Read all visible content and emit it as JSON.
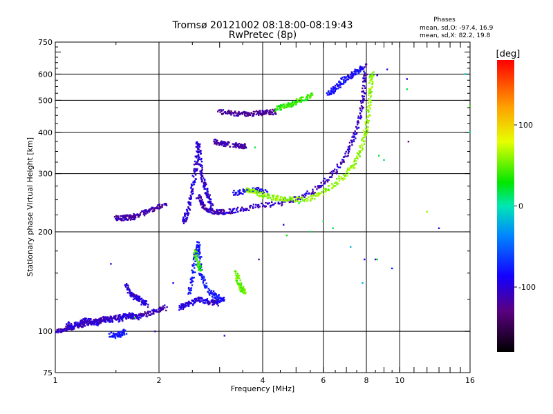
{
  "chart_data": {
    "type": "scatter",
    "title": "Tromsø 20121002 08:18:00-08:19:43",
    "subtitle": "RwPretec (8p)",
    "stats": {
      "heading": "Phases",
      "line1": "mean, sd,O: -97.4, 16.9",
      "line2": "mean, sd,X:  82.2, 19.8"
    },
    "xlabel": "Frequency [MHz]",
    "ylabel": "Stationary phase Virtual Height [km]",
    "x_scale": "log",
    "y_scale": "log",
    "xlim": [
      1,
      16
    ],
    "ylim": [
      75,
      750
    ],
    "x_ticks": [
      1,
      2,
      4,
      6,
      8,
      10,
      16
    ],
    "y_ticks": [
      75,
      100,
      200,
      300,
      400,
      500,
      600,
      750
    ],
    "grid_x": [
      2,
      4,
      6,
      8,
      10
    ],
    "grid_y": [
      100,
      200,
      300,
      400,
      500,
      600
    ],
    "colorbar": {
      "label": "[deg]",
      "range": [
        -180,
        180
      ],
      "ticks": [
        100,
        0,
        -100
      ]
    },
    "traces": [
      {
        "phase": -115,
        "points": [
          [
            1.0,
            100
          ],
          [
            1.05,
            101
          ],
          [
            1.1,
            102
          ],
          [
            1.15,
            104
          ],
          [
            1.2,
            105
          ],
          [
            1.25,
            106
          ],
          [
            1.3,
            107
          ],
          [
            1.35,
            108
          ],
          [
            1.4,
            109
          ],
          [
            1.5,
            110
          ],
          [
            1.6,
            111
          ],
          [
            1.7,
            111
          ],
          [
            1.8,
            112
          ],
          [
            1.9,
            114
          ],
          [
            2.0,
            116
          ],
          [
            2.1,
            118
          ]
        ]
      },
      {
        "phase": -110,
        "points": [
          [
            1.08,
            105
          ],
          [
            1.12,
            103
          ],
          [
            1.18,
            106
          ],
          [
            1.22,
            108
          ],
          [
            1.28,
            107
          ],
          [
            1.32,
            106
          ],
          [
            1.38,
            109
          ],
          [
            1.45,
            108
          ],
          [
            1.55,
            109
          ],
          [
            1.65,
            112
          ],
          [
            1.75,
            110
          ]
        ]
      },
      {
        "phase": -120,
        "points": [
          [
            1.5,
            220
          ],
          [
            1.55,
            220
          ],
          [
            1.6,
            221
          ],
          [
            1.65,
            221
          ],
          [
            1.7,
            222
          ],
          [
            1.8,
            228
          ],
          [
            1.9,
            234
          ],
          [
            2.0,
            238
          ],
          [
            2.1,
            242
          ]
        ]
      },
      {
        "phase": -110,
        "points": [
          [
            2.35,
            215
          ],
          [
            2.4,
            222
          ],
          [
            2.45,
            240
          ],
          [
            2.5,
            268
          ],
          [
            2.55,
            305
          ],
          [
            2.58,
            340
          ],
          [
            2.6,
            370
          ],
          [
            2.62,
            345
          ],
          [
            2.65,
            300
          ],
          [
            2.7,
            280
          ],
          [
            2.75,
            262
          ],
          [
            2.8,
            250
          ],
          [
            2.85,
            240
          ]
        ]
      },
      {
        "phase": -115,
        "points": [
          [
            2.6,
            255
          ],
          [
            2.65,
            245
          ],
          [
            2.7,
            238
          ],
          [
            2.8,
            232
          ],
          [
            2.9,
            230
          ],
          [
            3.0,
            229
          ],
          [
            3.1,
            230
          ],
          [
            3.3,
            231
          ],
          [
            3.6,
            236
          ],
          [
            4.0,
            240
          ],
          [
            4.5,
            244
          ],
          [
            5.0,
            252
          ],
          [
            5.5,
            262
          ],
          [
            6.0,
            280
          ],
          [
            6.5,
            305
          ],
          [
            7.0,
            340
          ],
          [
            7.3,
            380
          ],
          [
            7.6,
            430
          ],
          [
            7.8,
            490
          ],
          [
            7.9,
            560
          ],
          [
            7.95,
            640
          ]
        ]
      },
      {
        "phase": -100,
        "points": [
          [
            3.3,
            262
          ],
          [
            3.5,
            265
          ],
          [
            3.7,
            268
          ],
          [
            3.9,
            268
          ],
          [
            4.1,
            265
          ]
        ]
      },
      {
        "phase": 60,
        "points": [
          [
            3.6,
            268
          ],
          [
            3.8,
            264
          ],
          [
            4.0,
            258
          ],
          [
            4.3,
            254
          ],
          [
            4.6,
            252
          ],
          [
            5.0,
            250
          ],
          [
            5.5,
            252
          ],
          [
            6.0,
            265
          ],
          [
            6.5,
            280
          ],
          [
            7.0,
            300
          ],
          [
            7.4,
            320
          ],
          [
            7.7,
            350
          ],
          [
            7.9,
            390
          ],
          [
            8.1,
            440
          ],
          [
            8.2,
            500
          ],
          [
            8.25,
            560
          ],
          [
            8.3,
            610
          ]
        ]
      },
      {
        "phase": -125,
        "points": [
          [
            3.0,
            462
          ],
          [
            3.2,
            458
          ],
          [
            3.4,
            455
          ],
          [
            3.6,
            454
          ],
          [
            3.8,
            456
          ],
          [
            4.0,
            458
          ],
          [
            4.2,
            460
          ],
          [
            4.4,
            462
          ]
        ]
      },
      {
        "phase": 40,
        "points": [
          [
            4.4,
            470
          ],
          [
            4.6,
            478
          ],
          [
            4.8,
            485
          ],
          [
            5.0,
            495
          ],
          [
            5.3,
            505
          ],
          [
            5.6,
            520
          ]
        ]
      },
      {
        "phase": -95,
        "points": [
          [
            6.2,
            520
          ],
          [
            6.4,
            535
          ],
          [
            6.6,
            550
          ],
          [
            6.8,
            570
          ],
          [
            7.0,
            585
          ],
          [
            7.3,
            600
          ],
          [
            7.6,
            615
          ],
          [
            7.8,
            625
          ]
        ]
      },
      {
        "phase": -120,
        "points": [
          [
            2.9,
            375
          ],
          [
            3.0,
            372
          ],
          [
            3.1,
            369
          ],
          [
            3.2,
            367
          ]
        ]
      },
      {
        "phase": -120,
        "points": [
          [
            3.3,
            365
          ],
          [
            3.4,
            365
          ],
          [
            3.5,
            364
          ],
          [
            3.6,
            364
          ]
        ]
      },
      {
        "phase": -90,
        "points": [
          [
            2.45,
            130
          ],
          [
            2.5,
            145
          ],
          [
            2.55,
            165
          ],
          [
            2.6,
            185
          ],
          [
            2.62,
            170
          ],
          [
            2.65,
            150
          ],
          [
            2.7,
            140
          ],
          [
            2.8,
            132
          ],
          [
            2.9,
            128
          ],
          [
            3.0,
            126
          ],
          [
            3.1,
            124
          ]
        ]
      },
      {
        "phase": 40,
        "points": [
          [
            2.55,
            175
          ],
          [
            2.6,
            160
          ],
          [
            2.65,
            150
          ]
        ]
      },
      {
        "phase": -110,
        "points": [
          [
            2.3,
            118
          ],
          [
            2.4,
            120
          ],
          [
            2.5,
            122
          ],
          [
            2.6,
            125
          ],
          [
            2.7,
            124
          ],
          [
            2.8,
            122
          ],
          [
            2.9,
            123
          ],
          [
            3.0,
            121
          ]
        ]
      },
      {
        "phase": 50,
        "points": [
          [
            3.35,
            150
          ],
          [
            3.4,
            142
          ],
          [
            3.45,
            136
          ],
          [
            3.5,
            133
          ],
          [
            3.55,
            132
          ]
        ]
      },
      {
        "phase": -110,
        "points": [
          [
            1.6,
            138
          ],
          [
            1.65,
            130
          ],
          [
            1.7,
            127
          ],
          [
            1.75,
            126
          ],
          [
            1.8,
            122
          ],
          [
            1.85,
            120
          ]
        ]
      },
      {
        "phase": -90,
        "points": [
          [
            1.45,
            98
          ],
          [
            1.5,
            97
          ],
          [
            1.55,
            98
          ],
          [
            1.6,
            100
          ]
        ]
      }
    ],
    "scatter_points": [
      [
        1.45,
        160,
        -110
      ],
      [
        1.7,
        110,
        30
      ],
      [
        1.95,
        100,
        -120
      ],
      [
        2.2,
        140,
        -100
      ],
      [
        3.1,
        97,
        -110
      ],
      [
        3.9,
        165,
        -120
      ],
      [
        4.7,
        195,
        30
      ],
      [
        5.5,
        200,
        20
      ],
      [
        7.2,
        180,
        -20
      ],
      [
        7.8,
        140,
        -20
      ],
      [
        7.9,
        165,
        -100
      ],
      [
        8.5,
        165,
        -110
      ],
      [
        8.6,
        165,
        20
      ],
      [
        9.0,
        330,
        20
      ],
      [
        9.5,
        155,
        -90
      ],
      [
        10.5,
        580,
        -110
      ],
      [
        10.5,
        540,
        20
      ],
      [
        10.6,
        375,
        -130
      ],
      [
        12.0,
        230,
        60
      ],
      [
        13.0,
        205,
        -110
      ],
      [
        15.5,
        600,
        -10
      ],
      [
        16.0,
        400,
        10
      ],
      [
        16.0,
        480,
        40
      ],
      [
        8.4,
        595,
        50
      ],
      [
        8.6,
        595,
        -110
      ],
      [
        9.2,
        620,
        -110
      ],
      [
        8.7,
        340,
        20
      ],
      [
        3.8,
        360,
        20
      ],
      [
        5.1,
        244,
        20
      ],
      [
        6.0,
        215,
        20
      ],
      [
        6.4,
        205,
        20
      ],
      [
        4.6,
        210,
        -110
      ]
    ]
  }
}
